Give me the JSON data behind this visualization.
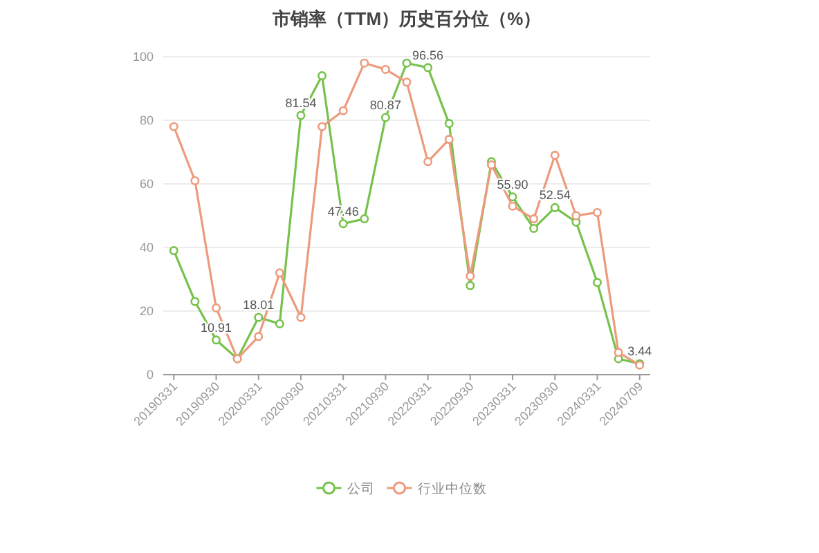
{
  "chart_data": {
    "type": "line",
    "title": "市销率（TTM）历史百分位（%）",
    "categories": [
      "20190331",
      null,
      "20190930",
      null,
      "20200331",
      null,
      "20200930",
      null,
      "20210331",
      null,
      "20210930",
      null,
      "20220331",
      null,
      "20220930",
      null,
      "20230331",
      null,
      "20230930",
      null,
      "20240331",
      null,
      "20240709"
    ],
    "ylim": [
      0,
      100
    ],
    "yticks": [
      0,
      20,
      40,
      60,
      80,
      100
    ],
    "grid": "y",
    "legend": "bottom",
    "marker": "circle",
    "series": [
      {
        "name": "公司",
        "color": "#76c24c",
        "values": [
          39,
          23,
          10.91,
          5,
          18.01,
          16,
          81.54,
          94,
          47.46,
          49,
          80.87,
          98,
          96.56,
          79,
          28,
          67,
          55.9,
          46,
          52.54,
          48,
          29,
          5,
          3.44
        ],
        "value_labels": [
          null,
          null,
          "10.91",
          null,
          "18.01",
          null,
          "81.54",
          null,
          "47.46",
          null,
          "80.87",
          null,
          "96.56",
          null,
          null,
          null,
          "55.90",
          null,
          "52.54",
          null,
          null,
          null,
          "3.44"
        ]
      },
      {
        "name": "行业中位数",
        "color": "#ec9b7c",
        "values": [
          78,
          61,
          21,
          5,
          12,
          32,
          18,
          78,
          83,
          98,
          96,
          92,
          67,
          74,
          31,
          66,
          53,
          49,
          69,
          50,
          51,
          7,
          3
        ]
      }
    ]
  }
}
